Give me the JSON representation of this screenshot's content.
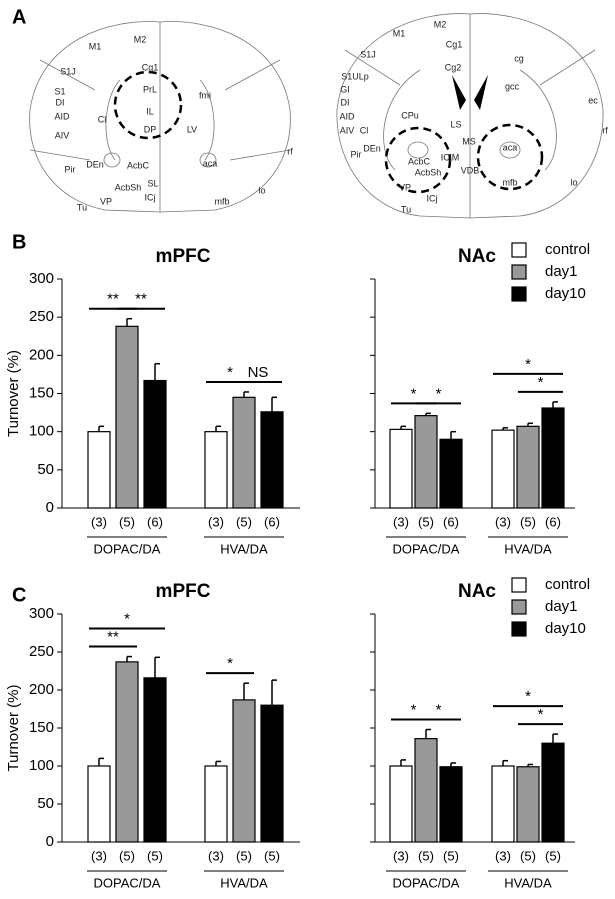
{
  "panels": {
    "a": "A",
    "b": "B",
    "c": "C"
  },
  "atlas": [
    {
      "labels": [
        "M1",
        "M2",
        "Cg1",
        "S1J",
        "PrL",
        "fmi",
        "S1",
        "DI",
        "IL",
        "AID",
        "Cl",
        "DP",
        "LV",
        "AIV",
        "rf",
        "DEn",
        "AcbC",
        "aca",
        "Pir",
        "lo",
        "AcbSh",
        "SL",
        "VP",
        "ICj",
        "mfb",
        "Tu"
      ]
    },
    {
      "labels": [
        "M2",
        "M1",
        "Cg1",
        "S1J",
        "cg",
        "Cg2",
        "S1ULp",
        "gcc",
        "GI",
        "DI",
        "ec",
        "CPu",
        "AID",
        "LS",
        "AIV",
        "Cl",
        "rf",
        "MS",
        "Pir",
        "DEn",
        "ICjM",
        "AcbC",
        "aca",
        "AcbSh",
        "VDB",
        "VP",
        "mfb",
        "lo",
        "ICj",
        "Tu"
      ]
    }
  ],
  "chart_data": [
    {
      "type": "bar",
      "title": "mPFC",
      "y_label": "Turnover (%)",
      "categories": [
        "DOPAC/DA",
        "HVA/DA"
      ],
      "series": [
        {
          "color": "#ffffff",
          "values": [
            100,
            100
          ],
          "errors": [
            7,
            7
          ],
          "n_labels": [
            "(3)",
            "(3)"
          ]
        },
        {
          "color": "#999999",
          "values": [
            238,
            145
          ],
          "errors": [
            10,
            7
          ],
          "n_labels": [
            "(5)",
            "(5)"
          ]
        },
        {
          "color": "#000000",
          "values": [
            167,
            126
          ],
          "errors": [
            22,
            19
          ],
          "n_labels": [
            "(6)",
            "(6)"
          ]
        }
      ],
      "ylim": [
        0,
        300
      ],
      "yticks": [
        0,
        50,
        100,
        150,
        200,
        250,
        300
      ],
      "tick_labels": true,
      "annotations": [
        "**",
        "**",
        "*",
        "NS"
      ]
    },
    {
      "type": "bar",
      "title": "NAc",
      "categories": [
        "DOPAC/DA",
        "HVA/DA"
      ],
      "series": [
        {
          "name": "control",
          "color": "#ffffff",
          "values": [
            103,
            102
          ],
          "errors": [
            4,
            3
          ],
          "n_labels": [
            "(3)",
            "(3)"
          ]
        },
        {
          "name": "day1",
          "color": "#999999",
          "values": [
            121,
            107
          ],
          "errors": [
            3,
            4
          ],
          "n_labels": [
            "(5)",
            "(5)"
          ]
        },
        {
          "name": "day10",
          "color": "#000000",
          "values": [
            90,
            131
          ],
          "errors": [
            10,
            8
          ],
          "n_labels": [
            "(6)",
            "(6)"
          ]
        }
      ],
      "ylim": [
        0,
        300
      ],
      "yticks": [
        0,
        50,
        100,
        150,
        200,
        250,
        300
      ],
      "tick_labels": false,
      "legend": "top-right",
      "annotations": [
        "*",
        "*",
        "*",
        "*"
      ]
    },
    {
      "type": "bar",
      "title": "mPFC",
      "y_label": "Turnover (%)",
      "categories": [
        "DOPAC/DA",
        "HVA/DA"
      ],
      "series": [
        {
          "color": "#ffffff",
          "values": [
            100,
            100
          ],
          "errors": [
            10,
            6
          ],
          "n_labels": [
            "(3)",
            "(3)"
          ]
        },
        {
          "color": "#999999",
          "values": [
            237,
            187
          ],
          "errors": [
            7,
            22
          ],
          "n_labels": [
            "(5)",
            "(5)"
          ]
        },
        {
          "color": "#000000",
          "values": [
            216,
            180
          ],
          "errors": [
            27,
            33
          ],
          "n_labels": [
            "(5)",
            "(5)"
          ]
        }
      ],
      "ylim": [
        0,
        300
      ],
      "yticks": [
        0,
        50,
        100,
        150,
        200,
        250,
        300
      ],
      "tick_labels": true,
      "annotations": [
        "**",
        "*",
        "*"
      ]
    },
    {
      "type": "bar",
      "title": "NAc",
      "categories": [
        "DOPAC/DA",
        "HVA/DA"
      ],
      "series": [
        {
          "name": "control",
          "color": "#ffffff",
          "values": [
            100,
            100
          ],
          "errors": [
            8,
            7
          ],
          "n_labels": [
            "(3)",
            "(3)"
          ]
        },
        {
          "name": "day1",
          "color": "#999999",
          "values": [
            136,
            99
          ],
          "errors": [
            12,
            3
          ],
          "n_labels": [
            "(5)",
            "(5)"
          ]
        },
        {
          "name": "day10",
          "color": "#000000",
          "values": [
            99,
            130
          ],
          "errors": [
            5,
            12
          ],
          "n_labels": [
            "(5)",
            "(5)"
          ]
        }
      ],
      "ylim": [
        0,
        300
      ],
      "yticks": [
        0,
        50,
        100,
        150,
        200,
        250,
        300
      ],
      "tick_labels": false,
      "legend": "top-right",
      "annotations": [
        "*",
        "*",
        "*",
        "*"
      ]
    }
  ]
}
